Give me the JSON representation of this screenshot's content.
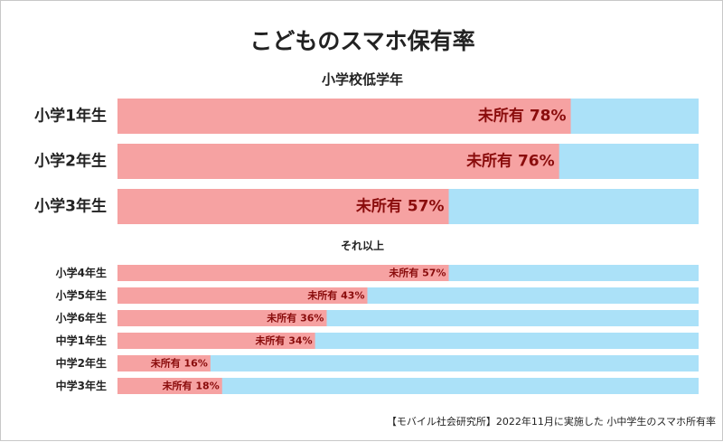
{
  "chart_data": {
    "type": "bar",
    "title": "こどものスマホ保有率",
    "source": "【モバイル社会研究所】2022年11月に実施した 小中学生のスマホ所有率",
    "value_label_prefix": "未所有",
    "unit": "%",
    "xlim": [
      0,
      100
    ],
    "colors": {
      "unowned": "#f6a2a2",
      "owned": "#abe1f8",
      "value_text": "#8a0c0c"
    },
    "groups": [
      {
        "name": "小学校低学年",
        "categories": [
          "小学1年生",
          "小学2年生",
          "小学3年生"
        ],
        "values": [
          78,
          76,
          57
        ]
      },
      {
        "name": "それ以上",
        "categories": [
          "小学4年生",
          "小学5年生",
          "小学6年生",
          "中学1年生",
          "中学2年生",
          "中学3年生"
        ],
        "values": [
          57,
          43,
          36,
          34,
          16,
          18
        ]
      }
    ]
  }
}
